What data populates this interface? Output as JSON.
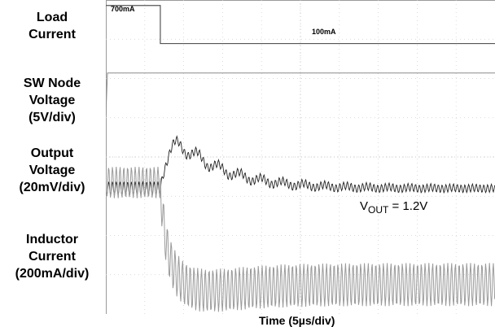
{
  "chart_data": {
    "type": "line",
    "traces": [
      {
        "label": [
          "Load",
          "Current"
        ],
        "annotations": [
          "700mA",
          "100mA"
        ]
      },
      {
        "label": [
          "SW Node",
          "Voltage",
          "(5V/div)"
        ]
      },
      {
        "label": [
          "Output",
          "Voltage",
          "(20mV/div)"
        ]
      },
      {
        "label": [
          "Inductor",
          "Current",
          "(200mA/div)"
        ]
      }
    ],
    "annotation": {
      "v": "V",
      "sub": "OUT",
      "rest": " = 1.2V"
    },
    "xlabel": "Time (5µs/div)",
    "grid": true,
    "divisions": {
      "x": 10,
      "y": 8
    },
    "load_step": {
      "before_mA": 700,
      "after_mA": 100,
      "step_time_div": 1.4
    }
  }
}
